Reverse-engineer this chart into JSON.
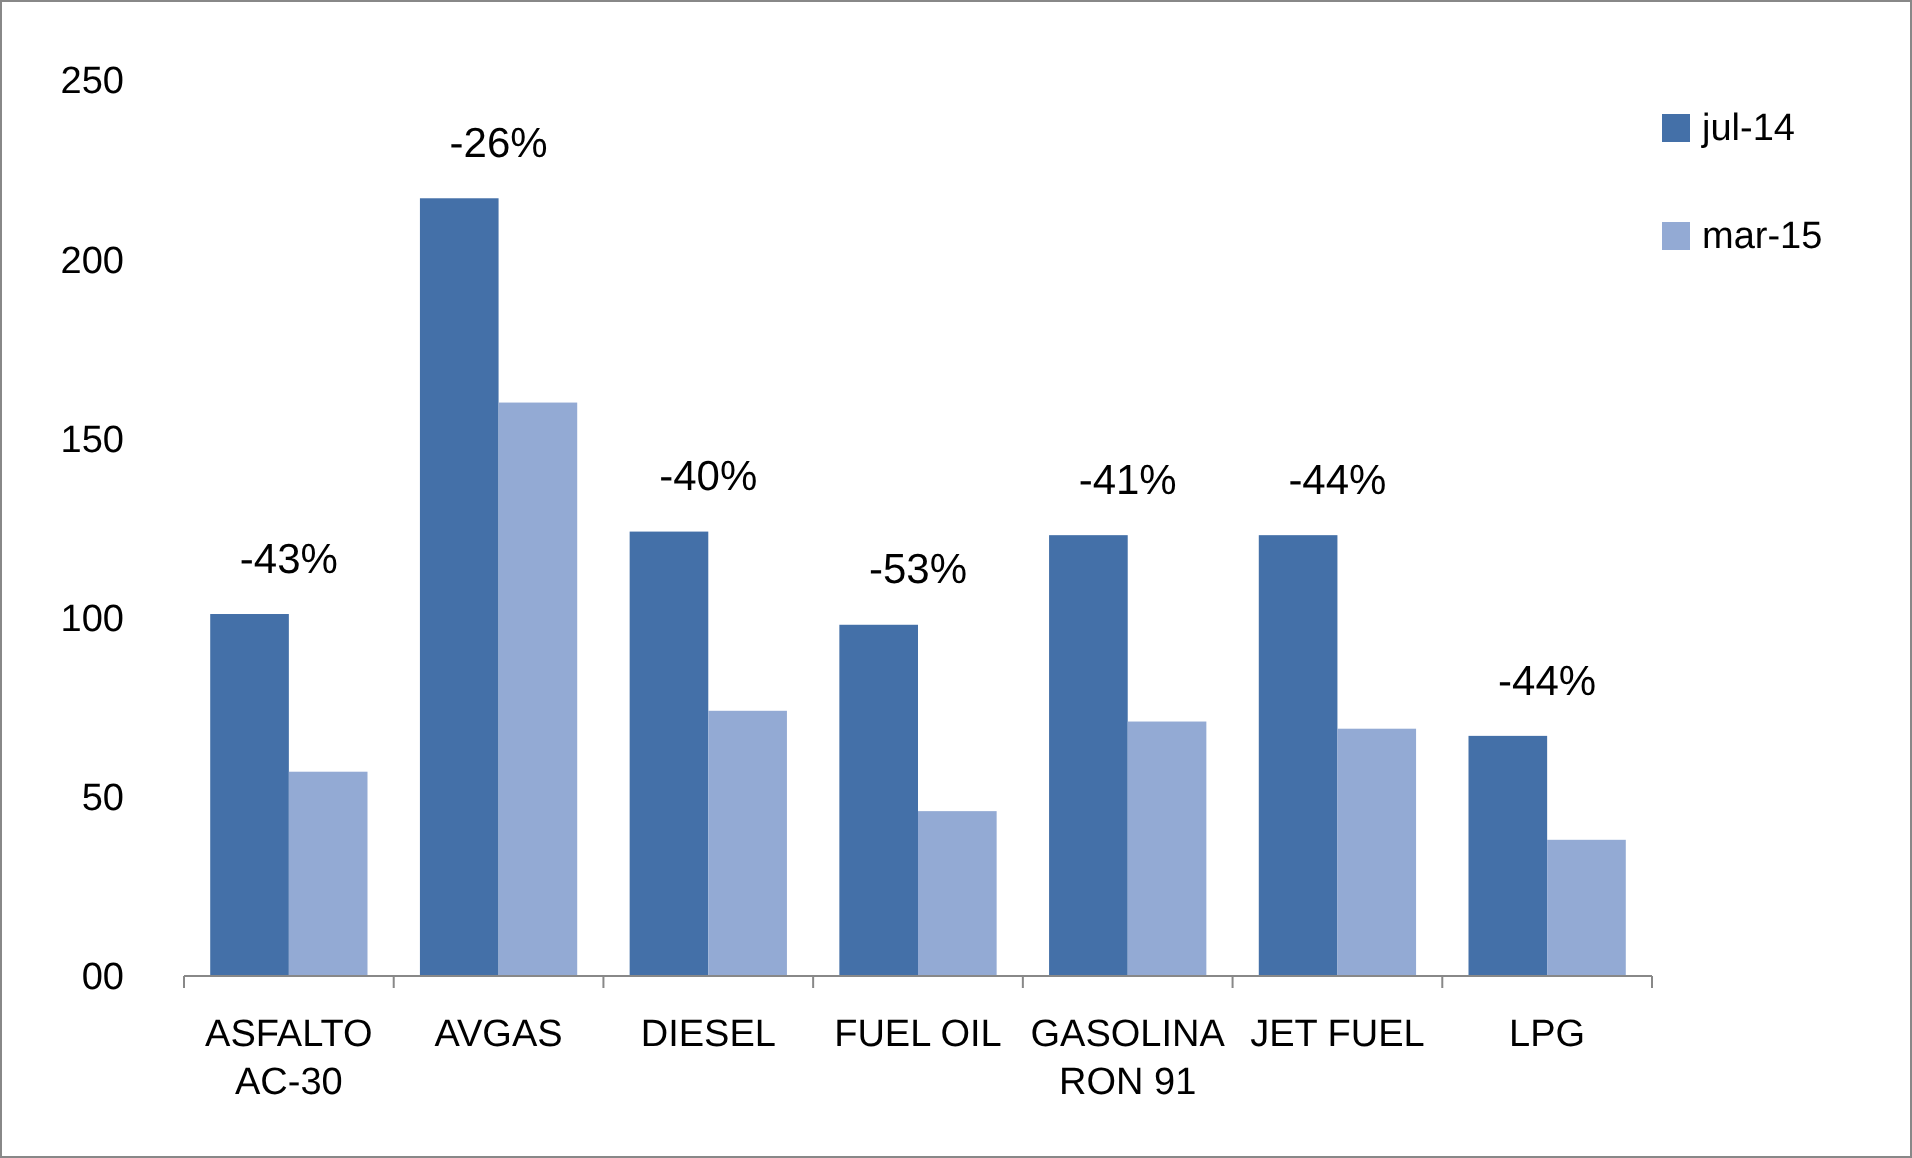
{
  "chart_data": {
    "type": "bar",
    "categories": [
      "ASFALTO\nAC-30",
      "AVGAS",
      "DIESEL",
      "FUEL OIL",
      "GASOLINA\nRON 91",
      "JET FUEL",
      "LPG"
    ],
    "series": [
      {
        "name": "jul-14",
        "color": "#4470a8",
        "values": [
          101,
          217,
          124,
          98,
          123,
          123,
          67
        ]
      },
      {
        "name": "mar-15",
        "color": "#93aad4",
        "values": [
          57,
          160,
          74,
          46,
          71,
          69,
          38
        ]
      }
    ],
    "ylim": [
      0,
      250
    ],
    "yticks": [
      {
        "value": 0,
        "label": "00"
      },
      50,
      100,
      150,
      200,
      250
    ],
    "grid": false,
    "legend": "top right",
    "annotations": [
      "-43%",
      "-26%",
      "-40%",
      "-53%",
      "-41%",
      "-44%",
      "-44%"
    ]
  }
}
